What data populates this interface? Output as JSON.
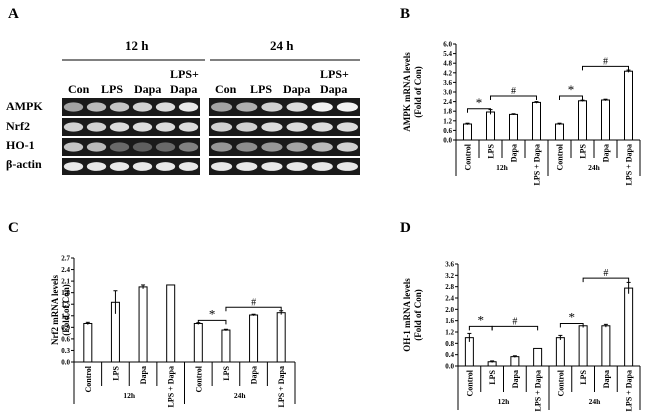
{
  "panel_a": {
    "letter": "A",
    "time_labels": [
      "12 h",
      "24 h"
    ],
    "lane_labels": [
      [
        "Con",
        "LPS",
        "Dapa",
        "LPS+",
        "Dapa"
      ],
      [
        "Con",
        "LPS",
        "Dapa",
        "LPS+",
        "Dapa"
      ]
    ],
    "row_labels": [
      "AMPK",
      "Nrf2",
      "HO-1",
      "β-actin"
    ]
  },
  "chart_data": [
    {
      "panel": "B",
      "type": "bar",
      "ylabel": "AMPK mRNA levels\n(Fold of Con)",
      "ylim": [
        0,
        6.0
      ],
      "yticks": [
        "0.0",
        "0.6",
        "1.2",
        "1.8",
        "2.4",
        "3.0",
        "3.6",
        "4.2",
        "4.8",
        "5.4",
        "6.0"
      ],
      "categories": [
        "Control",
        "LPS",
        "Dapa",
        "LPS + Dapa",
        "Control",
        "LPS",
        "Dapa",
        "LPS + Dapa"
      ],
      "groups": [
        "12h",
        "24h"
      ],
      "values": [
        1.0,
        1.75,
        1.6,
        2.35,
        1.0,
        2.45,
        2.5,
        4.3
      ],
      "errors": [
        0.05,
        0.15,
        0.04,
        0.05,
        0.05,
        0.04,
        0.05,
        0.07
      ],
      "annotations": [
        "*",
        "#",
        "*",
        "#"
      ]
    },
    {
      "panel": "C",
      "type": "bar",
      "ylabel": "Nrf2 mRNA levels\n(Fold of Con)",
      "ylim": [
        0,
        2.7
      ],
      "yticks": [
        "0.0",
        "0.3",
        "0.6",
        "0.9",
        "1.2",
        "1.5",
        "1.8",
        "2.1",
        "2.4",
        "2.7"
      ],
      "categories": [
        "Control",
        "LPS",
        "Dapa",
        "LPS + Dapa",
        "Control",
        "LPS",
        "Dapa",
        "LPS + Dapa"
      ],
      "groups": [
        "12h",
        "24h"
      ],
      "values": [
        1.0,
        1.55,
        1.95,
        2.0,
        1.0,
        0.83,
        1.22,
        1.28
      ],
      "errors": [
        0.03,
        0.3,
        0.05,
        0.0,
        0.02,
        0.02,
        0.02,
        0.05
      ],
      "annotations": [
        "*",
        "#"
      ]
    },
    {
      "panel": "D",
      "type": "bar",
      "ylabel": "OH-1 mRNA levels\n(Fold of Con)",
      "ylim": [
        0,
        3.6
      ],
      "yticks": [
        "0.0",
        "0.4",
        "0.8",
        "1.2",
        "1.6",
        "2.0",
        "2.4",
        "2.8",
        "3.2",
        "3.6"
      ],
      "categories": [
        "Control",
        "LPS",
        "Dapa",
        "LPS + Dapa",
        "Control",
        "LPS",
        "Dapa",
        "LPS + Dapa"
      ],
      "groups": [
        "12h",
        "24h"
      ],
      "values": [
        1.0,
        0.15,
        0.33,
        0.62,
        1.0,
        1.42,
        1.42,
        2.75
      ],
      "errors": [
        0.15,
        0.03,
        0.03,
        0.0,
        0.08,
        0.0,
        0.05,
        0.2
      ],
      "annotations": [
        "*",
        "#",
        "*",
        "#"
      ]
    }
  ]
}
